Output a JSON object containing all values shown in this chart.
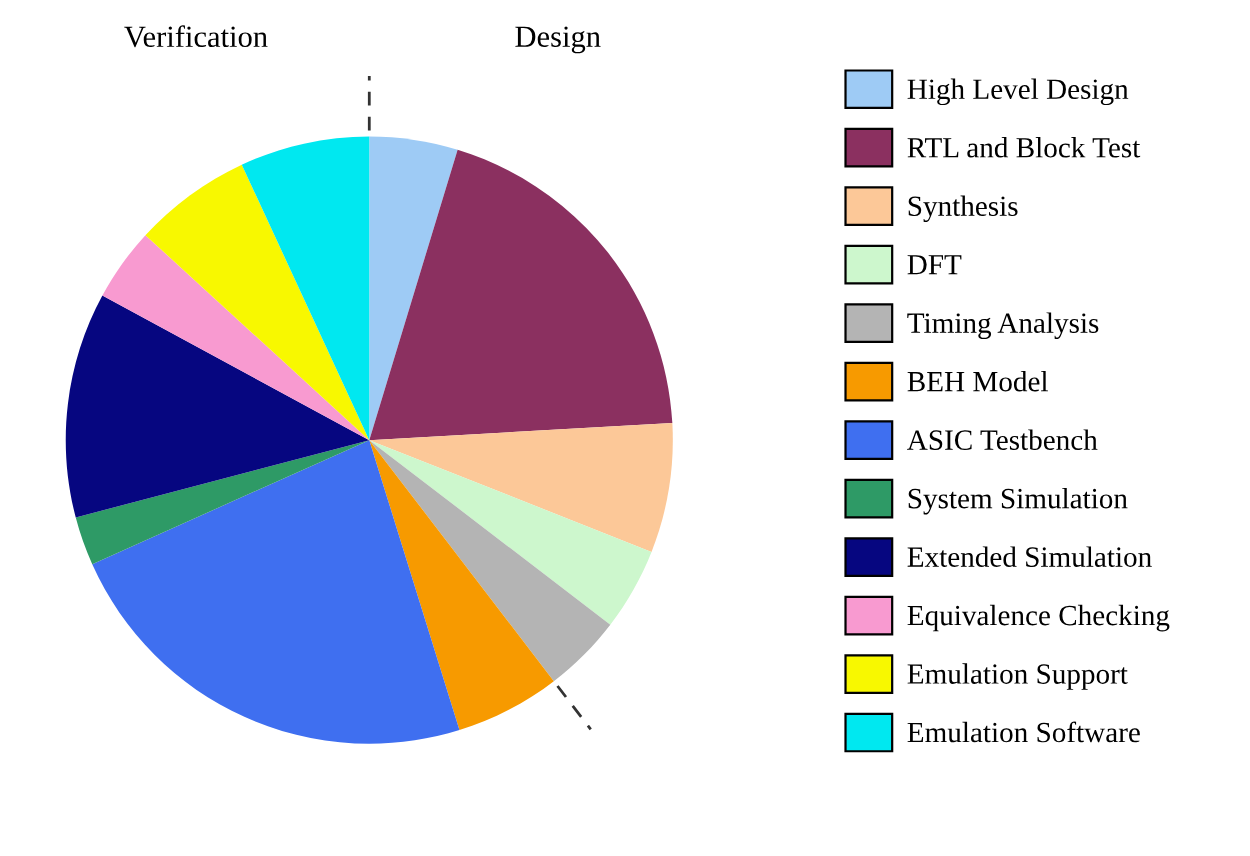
{
  "chart_data": {
    "type": "pie",
    "categories": [
      "High Level Design",
      "RTL and Block Test",
      "Synthesis",
      "DFT",
      "Timing Analysis",
      "BEH Model",
      "ASIC Testbench",
      "System Simulation",
      "Extended Simulation",
      "Equivalence Checking",
      "Emulation Support",
      "Emulation Software"
    ],
    "values": [
      4.7,
      19.4,
      6.9,
      4.4,
      4.2,
      5.6,
      23.1,
      2.6,
      12.0,
      3.9,
      6.3,
      6.9
    ],
    "colors": [
      "#9ecbf5",
      "#8b3060",
      "#fcc898",
      "#cdf7cd",
      "#b4b4b4",
      "#f79a00",
      "#3f6ff0",
      "#2e9a66",
      "#060680",
      "#f89ad0",
      "#f8f800",
      "#00e8f0"
    ],
    "annotations": [
      {
        "text": "Design",
        "x": "High Level Design"
      },
      {
        "text": "Verification",
        "x": "BEH Model"
      }
    ],
    "legend": "right"
  }
}
